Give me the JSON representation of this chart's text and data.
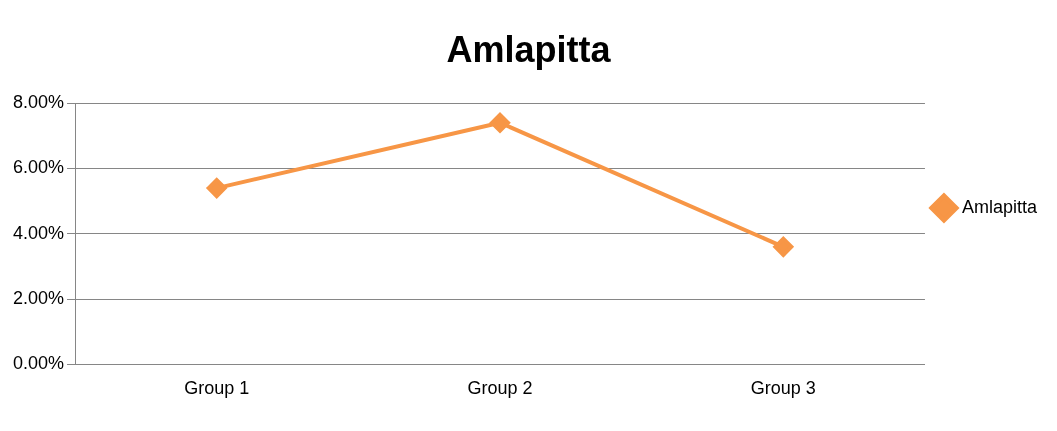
{
  "chart_data": {
    "type": "line",
    "title": "Amlapitta",
    "categories": [
      "Group 1",
      "Group 2",
      "Group 3"
    ],
    "series": [
      {
        "name": "Amlapitta",
        "color": "#f79646",
        "values": [
          5.4,
          7.4,
          3.6
        ]
      }
    ],
    "ylim": [
      0,
      8
    ],
    "yticks": [
      {
        "value": 0,
        "label": "0.00%"
      },
      {
        "value": 2,
        "label": "2.00%"
      },
      {
        "value": 4,
        "label": "4.00%"
      },
      {
        "value": 6,
        "label": "6.00%"
      },
      {
        "value": 8,
        "label": "8.00%"
      }
    ],
    "grid": "y",
    "legend": "right",
    "marker": "diamond",
    "line_style": "solid"
  }
}
